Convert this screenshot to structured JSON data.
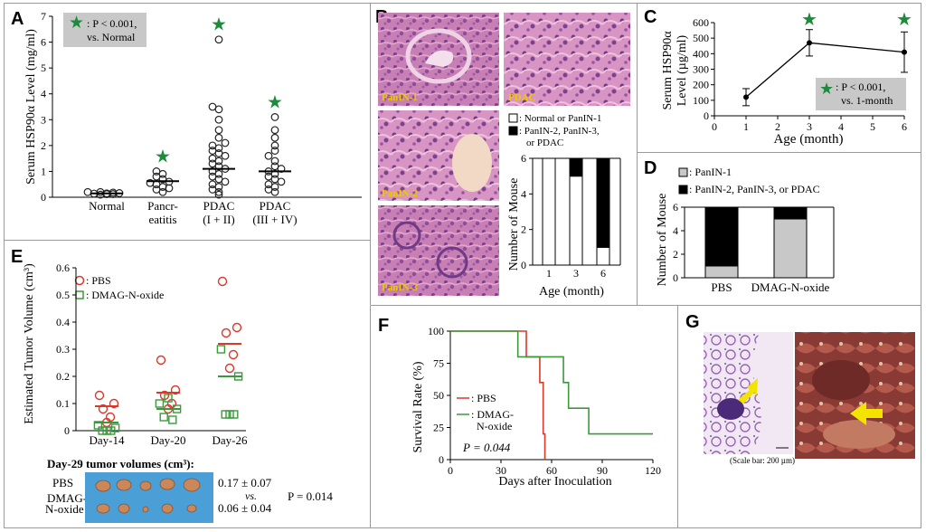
{
  "colors": {
    "star": "#1e8a3c",
    "pbs": "#d9382b",
    "dmag": "#3a9a3a",
    "gray_box": "#c8c8c8",
    "label_yellow": "#f0c800",
    "arrow_yellow": "#f2e300"
  },
  "panels": {
    "A": "A",
    "B": "B",
    "C": "C",
    "D": "D",
    "E": "E",
    "F": "F",
    "G": "G"
  },
  "chart_data": [
    {
      "panel": "A",
      "type": "scatter",
      "ylabel": "Serum HSP90α Level (mg/ml)",
      "yticks": [
        "0",
        "1",
        "2",
        "3",
        "4",
        "5",
        "6",
        "7"
      ],
      "ylim": [
        0,
        7
      ],
      "categories": [
        "Normal",
        "Pancr-eatitis",
        "PDAC (I + II)",
        "PDAC (III + IV)"
      ],
      "category_lines": [
        [
          "Normal"
        ],
        [
          "Pancr-",
          "eatitis"
        ],
        [
          "PDAC",
          "(I + II)"
        ],
        [
          "PDAC",
          "(III + IV)"
        ]
      ],
      "legend_lines": [
        ": P < 0.001,",
        "vs. Normal"
      ],
      "series": [
        {
          "values": [
            0.12,
            0.15,
            0.2,
            0.18,
            0.1,
            0.14,
            0.16,
            0.2,
            0.12
          ],
          "mean": 0.15
        },
        {
          "values": [
            0.2,
            0.3,
            0.4,
            0.5,
            0.6,
            0.7,
            0.8,
            0.9,
            1.0,
            0.35,
            0.55
          ],
          "mean": 0.62
        },
        {
          "values": [
            0.1,
            0.2,
            0.3,
            0.4,
            0.5,
            0.6,
            0.7,
            0.8,
            0.9,
            1.0,
            1.1,
            1.2,
            1.3,
            1.4,
            1.5,
            1.6,
            1.7,
            1.8,
            1.9,
            2.0,
            2.1,
            2.3,
            2.6,
            3.0,
            3.4,
            3.5,
            6.1
          ],
          "mean": 1.1
        },
        {
          "values": [
            0.2,
            0.3,
            0.4,
            0.5,
            0.6,
            0.7,
            0.8,
            0.9,
            1.0,
            1.1,
            1.2,
            1.4,
            1.6,
            1.8,
            2.0,
            2.3,
            2.6,
            3.1
          ],
          "mean": 1.0
        }
      ],
      "stars": [
        false,
        true,
        true,
        true
      ]
    },
    {
      "panel": "B",
      "type": "bar",
      "ylabel": "Number of Mouse",
      "xlabel": "Age (month)",
      "categories": [
        "1",
        "3",
        "6"
      ],
      "yticks": [
        "0",
        "2",
        "4",
        "6"
      ],
      "ylim": [
        0,
        6
      ],
      "legend": [
        {
          "lines": [
            ": Normal or PanIN-1"
          ]
        },
        {
          "lines": [
            ": PanIN-2, PanIN-3,",
            "or PDAC"
          ]
        }
      ],
      "series": [
        {
          "values": [
            6,
            5,
            1
          ]
        },
        {
          "values": [
            0,
            1,
            5
          ]
        }
      ]
    },
    {
      "panel": "C",
      "type": "line",
      "ylabel_lines": [
        "Serum HSP90α",
        "Level (µg/ml)"
      ],
      "xlabel": "Age (month)",
      "x": [
        1,
        3,
        6
      ],
      "y": [
        120,
        470,
        410
      ],
      "err": [
        55,
        85,
        130
      ],
      "xlim": [
        0,
        6
      ],
      "ylim": [
        0,
        600
      ],
      "xticks": [
        "0",
        "1",
        "2",
        "3",
        "4",
        "5",
        "6"
      ],
      "yticks": [
        "0",
        "100",
        "200",
        "300",
        "400",
        "500",
        "600"
      ],
      "stars_at": [
        3,
        6
      ],
      "legend_lines": [
        ": P < 0.001,",
        "vs. 1-month"
      ]
    },
    {
      "panel": "D",
      "type": "bar",
      "ylabel": "Number of Mouse",
      "categories": [
        "PBS",
        "DMAG-N-oxide"
      ],
      "yticks": [
        "0",
        "2",
        "4",
        "6"
      ],
      "ylim": [
        0,
        6
      ],
      "legend": [
        ": PanIN-1",
        ": PanIN-2, PanIN-3, or PDAC"
      ],
      "series": [
        {
          "values": [
            1,
            5
          ]
        },
        {
          "values": [
            5,
            1
          ]
        }
      ]
    },
    {
      "panel": "E",
      "type": "scatter",
      "ylabel": "Estimated Tumor Volume (cm³)",
      "categories": [
        "Day-14",
        "Day-20",
        "Day-26"
      ],
      "yticks": [
        "0",
        "0.1",
        "0.2",
        "0.3",
        "0.4",
        "0.5",
        "0.6"
      ],
      "ylim": [
        0,
        0.6
      ],
      "legend": [
        ": PBS",
        ": DMAG-N-oxide"
      ],
      "series": [
        {
          "name": "PBS",
          "values": [
            [
              0.13,
              0.1,
              0.08,
              0.05,
              0.03
            ],
            [
              0.26,
              0.15,
              0.13,
              0.1,
              0.08
            ],
            [
              0.55,
              0.38,
              0.36,
              0.28,
              0.23
            ]
          ],
          "means": [
            0.09,
            0.14,
            0.32
          ]
        },
        {
          "name": "DMAG-N-oxide",
          "values": [
            [
              0.02,
              0.01,
              0.0,
              0.0,
              0.0
            ],
            [
              0.1,
              0.08,
              0.05,
              0.04,
              0.12
            ],
            [
              0.3,
              0.2,
              0.06,
              0.06,
              0.06
            ]
          ],
          "means": [
            0.03,
            0.08,
            0.2
          ]
        }
      ],
      "day29": {
        "title": "Day-29 tumor volumes (cm³):",
        "rows": [
          "PBS",
          "DMAG-",
          "N-oxide"
        ],
        "pbs_value": "0.17 ± 0.07",
        "vs": "vs.",
        "dmag_value": "0.06 ± 0.04",
        "p": "P = 0.014"
      }
    },
    {
      "panel": "F",
      "type": "line",
      "ylabel": "Survival Rate (%)",
      "xlabel": "Days after Inoculation",
      "xticks": [
        "0",
        "30",
        "60",
        "90",
        "120"
      ],
      "yticks": [
        "0",
        "25",
        "50",
        "75",
        "100"
      ],
      "xlim": [
        0,
        120
      ],
      "ylim": [
        0,
        100
      ],
      "series": [
        {
          "name": "PBS",
          "legend_lines": [
            ": PBS"
          ],
          "steps": [
            [
              0,
              100
            ],
            [
              45,
              100
            ],
            [
              45,
              80
            ],
            [
              53,
              80
            ],
            [
              53,
              60
            ],
            [
              55,
              60
            ],
            [
              55,
              20
            ],
            [
              56,
              20
            ],
            [
              56,
              0
            ]
          ]
        },
        {
          "name": "DMAG-N-oxide",
          "legend_lines": [
            ": DMAG-",
            "N-oxide"
          ],
          "steps": [
            [
              0,
              100
            ],
            [
              40,
              100
            ],
            [
              40,
              80
            ],
            [
              67,
              80
            ],
            [
              67,
              60
            ],
            [
              70,
              60
            ],
            [
              70,
              40
            ],
            [
              82,
              40
            ],
            [
              82,
              20
            ],
            [
              120,
              20
            ]
          ]
        }
      ],
      "p": "P = 0.044"
    }
  ],
  "panel_B_images": {
    "labels": [
      "PanIN-1",
      "PDAC",
      "PanIN-2",
      "PanIN-3"
    ]
  },
  "panel_G": {
    "scale_bar": "(Scale bar: 200 µm)"
  }
}
